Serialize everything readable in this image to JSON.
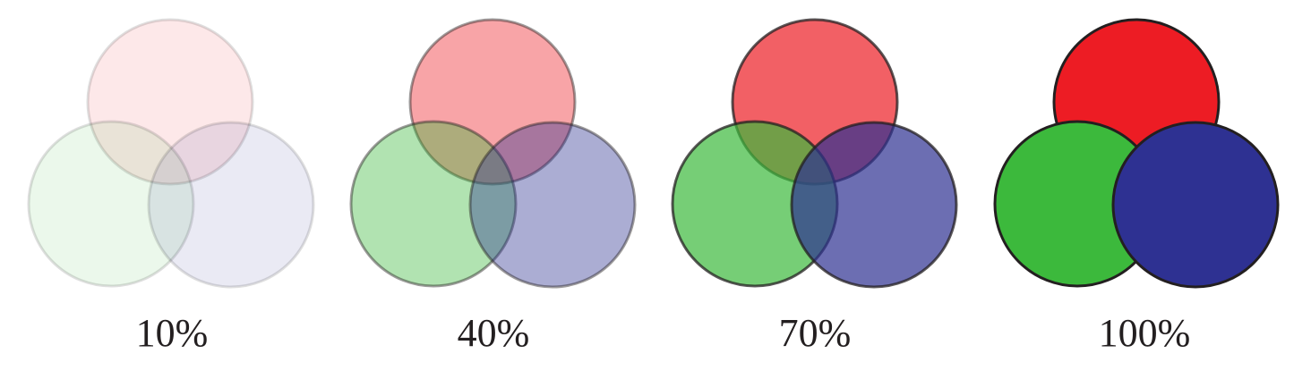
{
  "colors": {
    "red": "#ed1c24",
    "green": "#3cb93c",
    "blue": "#2e3192",
    "stroke": "#231f20"
  },
  "panels": [
    {
      "label": "10%",
      "opacity": 0.1
    },
    {
      "label": "40%",
      "opacity": 0.4
    },
    {
      "label": "70%",
      "opacity": 0.7
    },
    {
      "label": "100%",
      "opacity": 1.0
    }
  ]
}
